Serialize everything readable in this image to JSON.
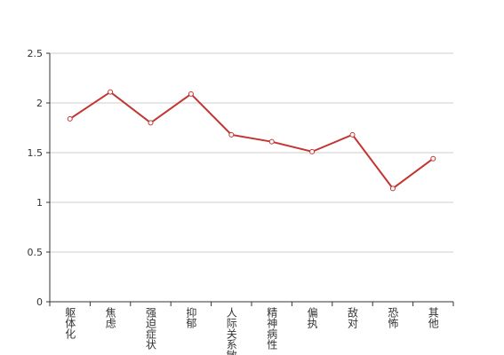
{
  "chart_data": {
    "type": "line",
    "categories": [
      "躯体化",
      "焦虑",
      "强迫症状",
      "抑郁",
      "人际关系敏感",
      "精神病性",
      "偏执",
      "敌对",
      "恐怖",
      "其他"
    ],
    "series": [
      {
        "color": "#c23531",
        "values": [
          1.84,
          2.11,
          1.8,
          2.09,
          1.68,
          1.61,
          1.51,
          1.68,
          1.14,
          1.44
        ]
      }
    ],
    "ylim": [
      0,
      2.5
    ],
    "yticks": [
      0,
      0.5,
      1,
      1.5,
      2,
      2.5
    ],
    "grid": true
  }
}
